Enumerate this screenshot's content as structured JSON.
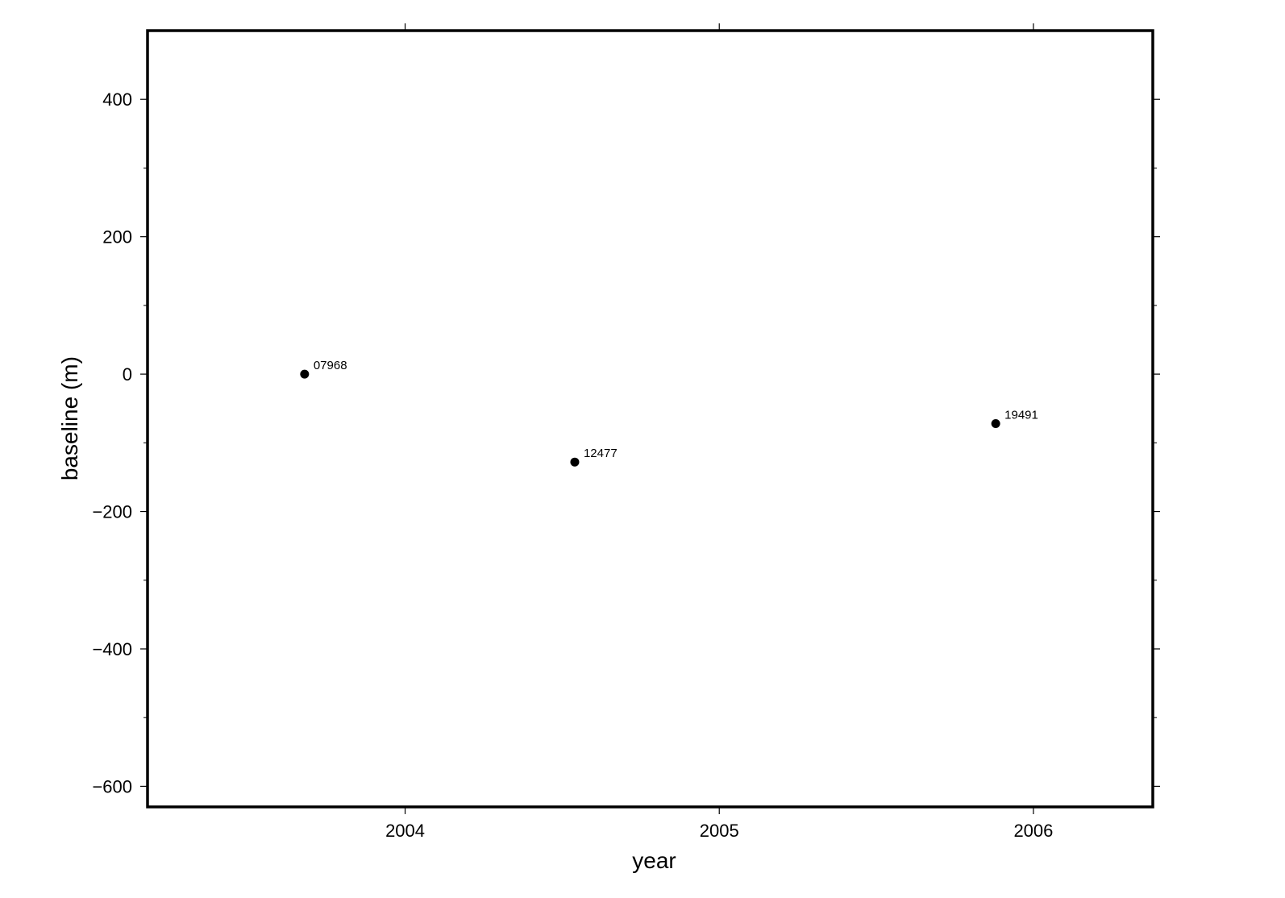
{
  "chart_data": {
    "type": "scatter",
    "xlabel": "year",
    "ylabel": "baseline (m)",
    "xlim": [
      2003.18,
      2006.38
    ],
    "ylim": [
      -630,
      500
    ],
    "x_ticks": [
      2004,
      2005,
      2006
    ],
    "x_tick_labels": [
      "2004",
      "2005",
      "2006"
    ],
    "x_minor_ticks": [],
    "y_ticks": [
      400,
      200,
      0,
      -200,
      -400,
      -600
    ],
    "y_tick_labels": [
      "400",
      "200",
      "0",
      "−200",
      "−400",
      "−600"
    ],
    "y_minor_ticks": [
      300,
      100,
      -100,
      -300,
      -500
    ],
    "grid": false,
    "legend": "none",
    "colors": {
      "frame": "#000000",
      "marker": "#000000",
      "background": "#ffffff"
    },
    "points": [
      {
        "label": "07968",
        "x": 2003.68,
        "y": 0
      },
      {
        "label": "12477",
        "x": 2004.54,
        "y": -128
      },
      {
        "label": "19491",
        "x": 2005.88,
        "y": -72
      }
    ]
  }
}
